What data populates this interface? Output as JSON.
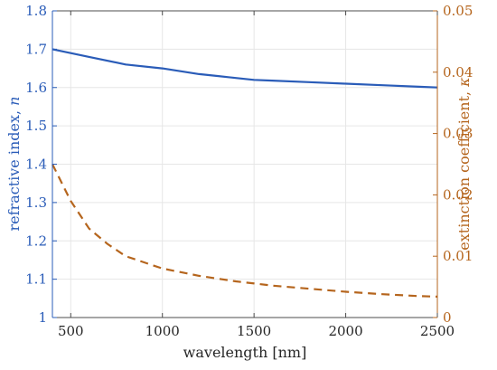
{
  "chart_data": {
    "type": "line",
    "xlabel": "wavelength [nm]",
    "ylabel_left": "refractive index, ",
    "ylabel_left_symbol": "n",
    "ylabel_right": "extinction coefficient, ",
    "ylabel_right_symbol": "κ",
    "xlim": [
      400,
      2500
    ],
    "ylim_left": [
      1.0,
      1.8
    ],
    "ylim_right": [
      0,
      0.05
    ],
    "x_ticks": [
      500,
      1000,
      1500,
      2000,
      2500
    ],
    "y_left_ticks": [
      1,
      1.1,
      1.2,
      1.3,
      1.4,
      1.5,
      1.6,
      1.7,
      1.8
    ],
    "y_right_ticks": [
      0,
      0.01,
      0.02,
      0.03,
      0.04,
      0.05
    ],
    "grid": true,
    "colors": {
      "left_axis": "#2a5cb8",
      "right_axis": "#b5651d",
      "grid": "#e6e6e6",
      "axis": "#4d4d4d"
    },
    "series": [
      {
        "axis": "left",
        "style": "solid",
        "x": [
          400,
          600,
          800,
          1000,
          1200,
          1300,
          1400,
          1500,
          1600,
          1800,
          2000,
          2200,
          2400,
          2500
        ],
        "y": [
          1.7,
          1.68,
          1.66,
          1.65,
          1.635,
          1.63,
          1.625,
          1.62,
          1.618,
          1.614,
          1.61,
          1.606,
          1.602,
          1.6
        ]
      },
      {
        "axis": "right",
        "style": "dashed",
        "x": [
          400,
          500,
          600,
          700,
          800,
          900,
          1000,
          1200,
          1400,
          1600,
          1800,
          2000,
          2200,
          2400,
          2500
        ],
        "y": [
          0.025,
          0.019,
          0.0145,
          0.012,
          0.01,
          0.009,
          0.008,
          0.0068,
          0.0059,
          0.0052,
          0.0047,
          0.0042,
          0.0038,
          0.0035,
          0.0034
        ]
      }
    ]
  }
}
